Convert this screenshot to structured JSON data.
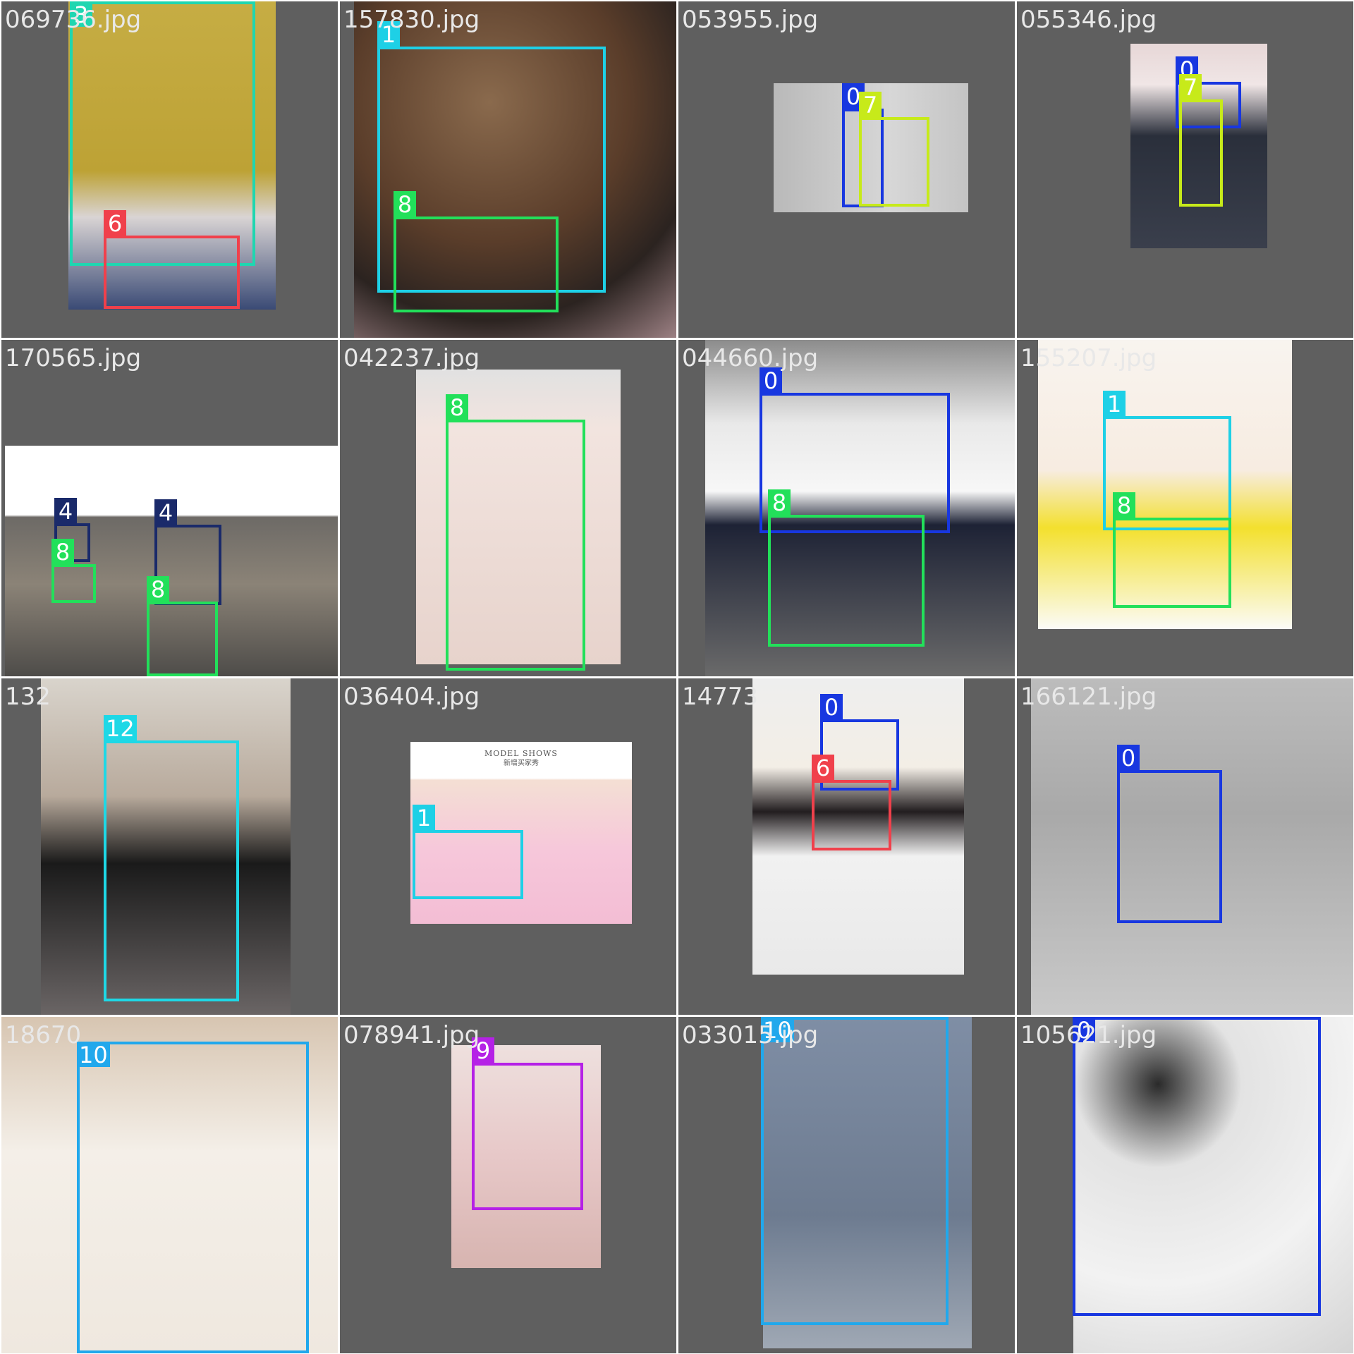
{
  "tiles": [
    {
      "filename": "069736.jpg",
      "photo": "cardigan",
      "boxes": [
        {
          "label": "3",
          "color": "#1fd6b0"
        },
        {
          "label": "6",
          "color": "#f0404b"
        }
      ]
    },
    {
      "filename": "157830.jpg",
      "photo": "leopard",
      "boxes": [
        {
          "label": "1",
          "color": "#1ed0e6"
        },
        {
          "label": "8",
          "color": "#22e05a"
        }
      ]
    },
    {
      "filename": "053955.jpg",
      "photo": "sitting",
      "boxes": [
        {
          "label": "0",
          "color": "#1837e0"
        },
        {
          "label": "7",
          "color": "#c7ea1a"
        }
      ]
    },
    {
      "filename": "055346.jpg",
      "photo": "floral",
      "boxes": [
        {
          "label": "0",
          "color": "#1837e0"
        },
        {
          "label": "7",
          "color": "#c7ea1a"
        }
      ]
    },
    {
      "filename": "170565.jpg",
      "photo": "mirror",
      "boxes": [
        {
          "label": "4",
          "color": "#1a2a6a"
        },
        {
          "label": "8",
          "color": "#22e05a"
        },
        {
          "label": "4",
          "color": "#1a2a6a"
        },
        {
          "label": "8",
          "color": "#22e05a"
        }
      ]
    },
    {
      "filename": "042237.jpg",
      "photo": "skirt",
      "boxes": [
        {
          "label": "8",
          "color": "#22e05a"
        }
      ]
    },
    {
      "filename": "044660.jpg",
      "photo": "bow",
      "boxes": [
        {
          "label": "0",
          "color": "#1837e0"
        },
        {
          "label": "8",
          "color": "#22e05a"
        }
      ]
    },
    {
      "filename": "155207.jpg",
      "photo": "yellow",
      "boxes": [
        {
          "label": "1",
          "color": "#1ed0e6"
        },
        {
          "label": "8",
          "color": "#22e05a"
        }
      ]
    },
    {
      "filename": "132",
      "photo": "cherry",
      "boxes": [
        {
          "label": "12",
          "color": "#1ed8e6"
        }
      ]
    },
    {
      "filename": "036404.jpg",
      "photo": "model",
      "banner": {
        "line1": "MODEL SHOWS",
        "line2": "新增买家秀"
      },
      "boxes": [
        {
          "label": "1",
          "color": "#1ed0e6"
        }
      ]
    },
    {
      "filename": "14773",
      "photo": "shorts",
      "boxes": [
        {
          "label": "0",
          "color": "#1837e0"
        },
        {
          "label": "6",
          "color": "#f0404b"
        }
      ]
    },
    {
      "filename": "166121.jpg",
      "photo": "tee",
      "boxes": [
        {
          "label": "0",
          "color": "#1837e0"
        }
      ]
    },
    {
      "filename": "18670",
      "photo": "lace",
      "boxes": [
        {
          "label": "10",
          "color": "#21a8ec"
        }
      ]
    },
    {
      "filename": "078941.jpg",
      "photo": "pink",
      "boxes": [
        {
          "label": "9",
          "color": "#b521e6"
        }
      ]
    },
    {
      "filename": "033015.jpg",
      "photo": "grey",
      "boxes": [
        {
          "label": "10",
          "color": "#21a8ec"
        }
      ]
    },
    {
      "filename": "105621.jpg",
      "photo": "dg",
      "boxes": [
        {
          "label": "0",
          "color": "#1837e0"
        }
      ]
    }
  ]
}
